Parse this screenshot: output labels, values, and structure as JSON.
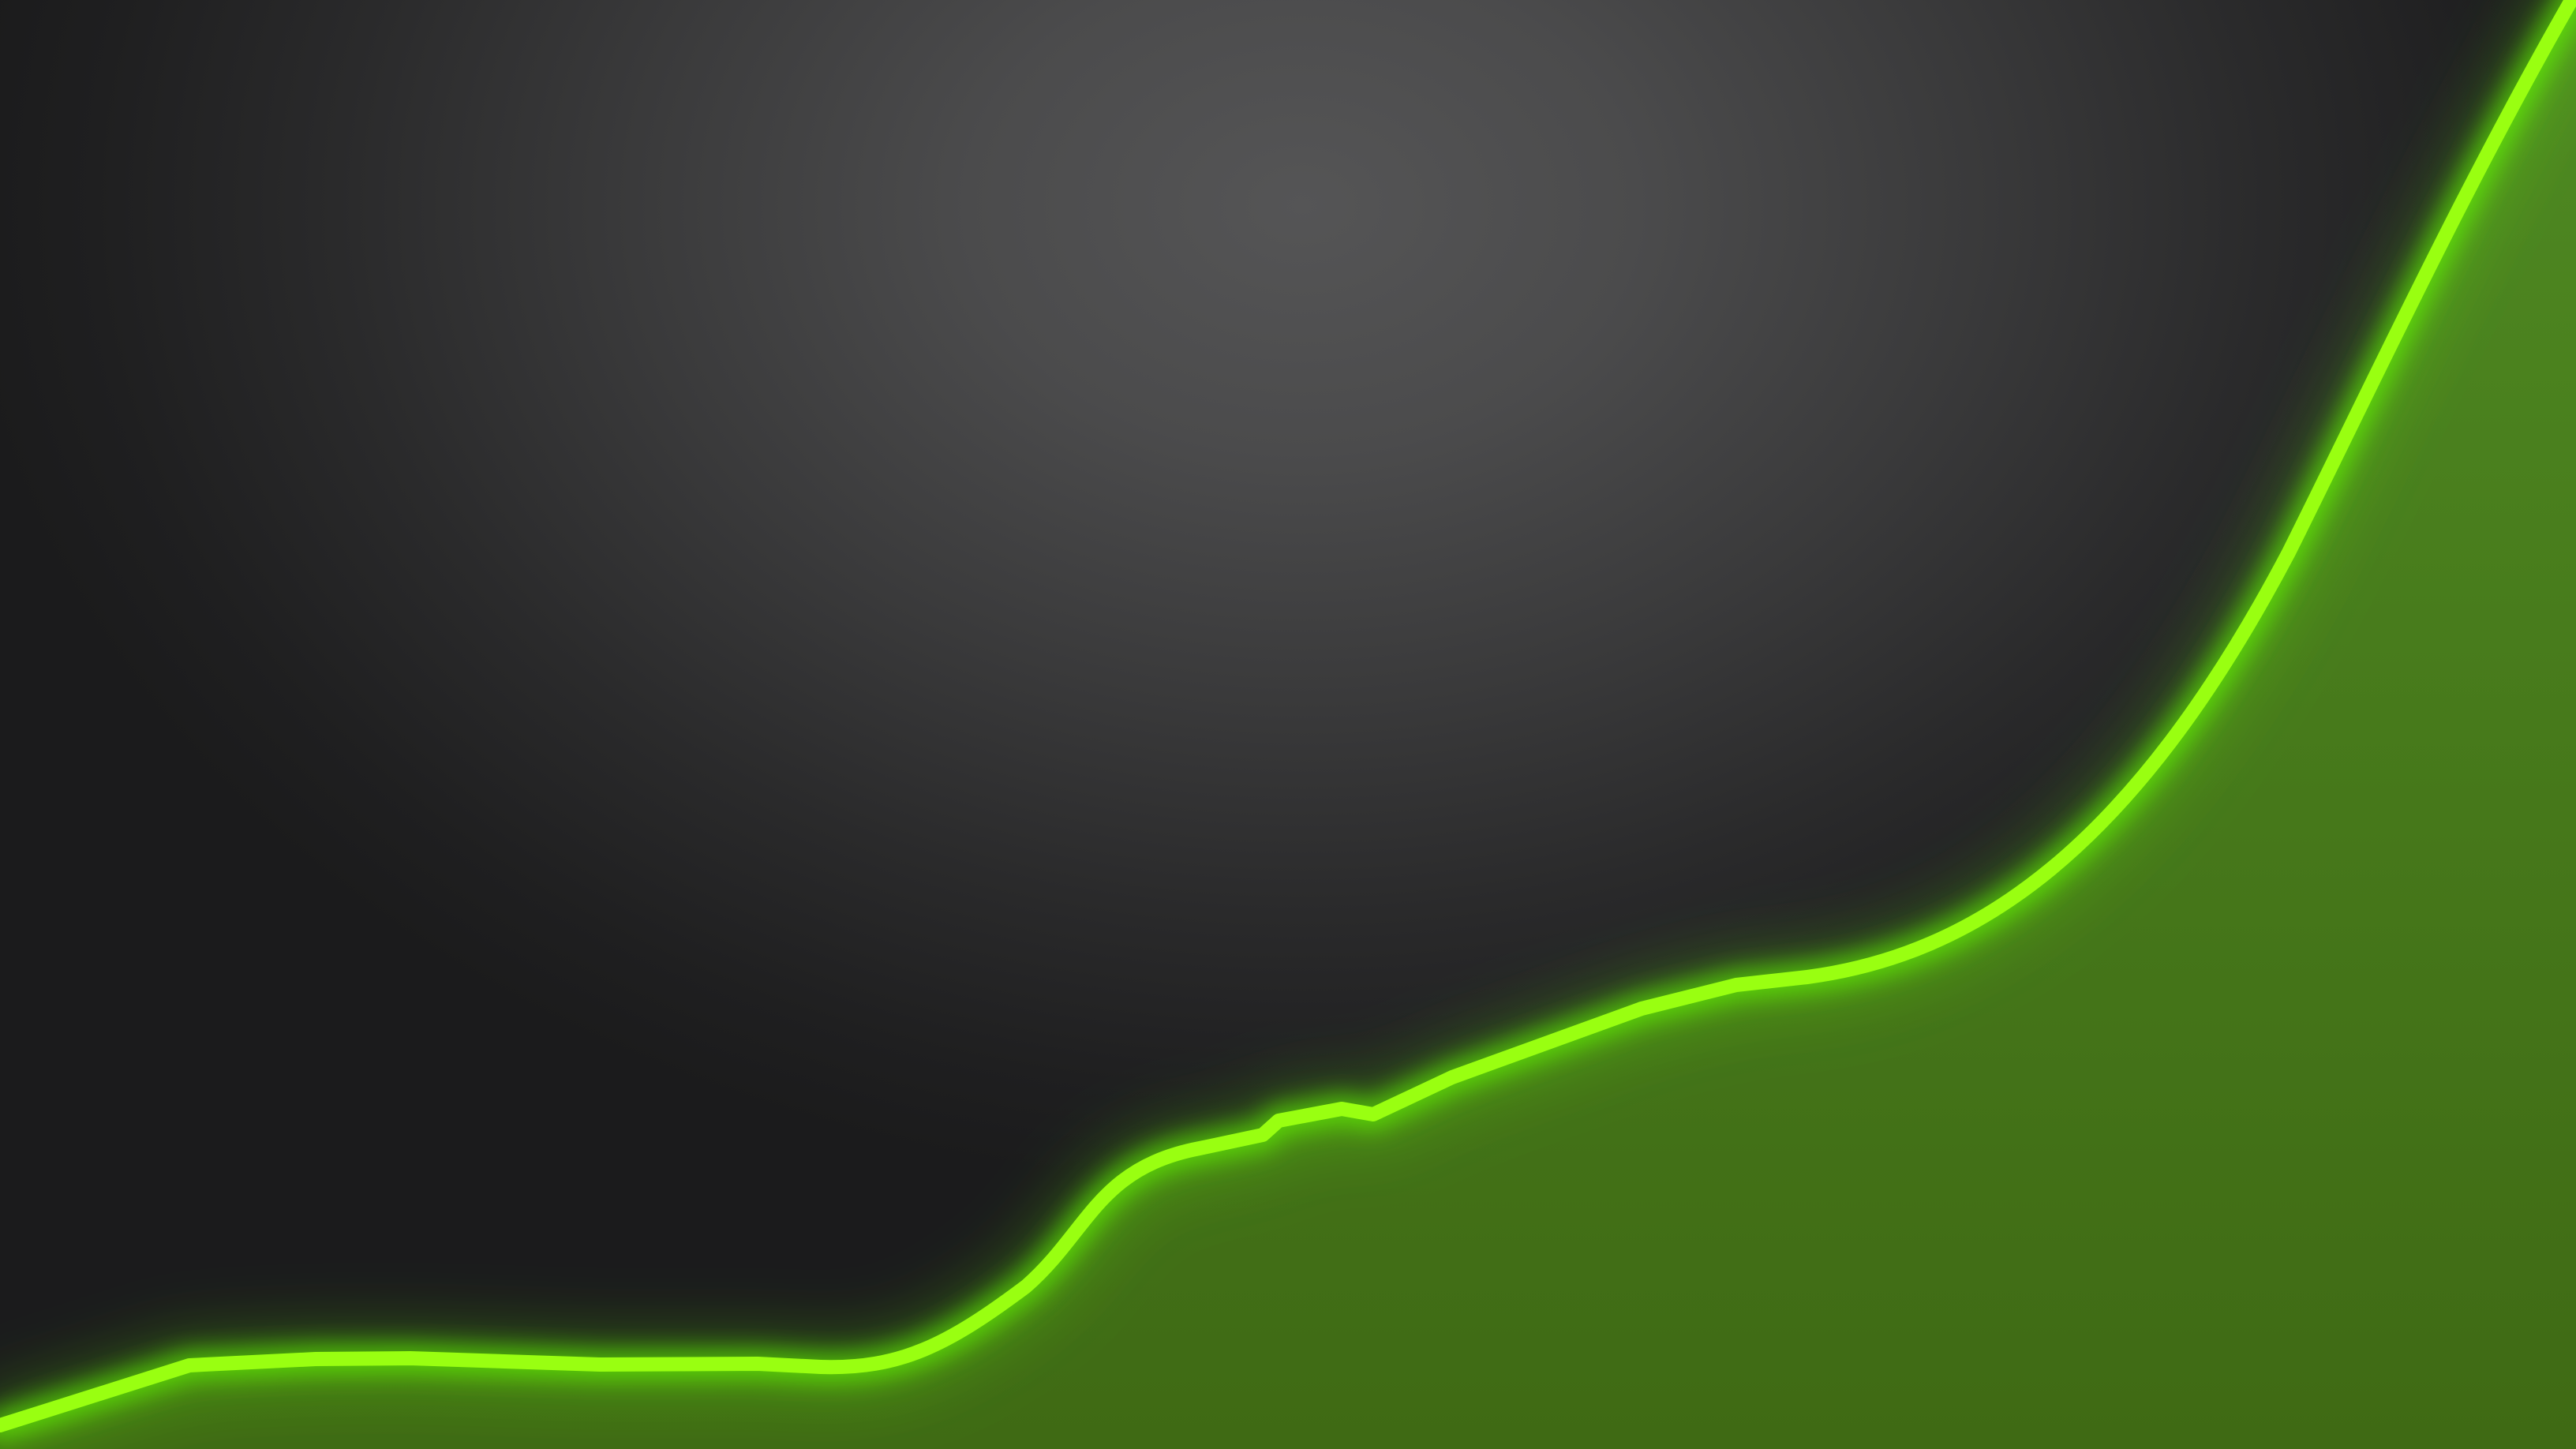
{
  "wallpaper": {
    "background_color": "#1c1c1d",
    "background_highlight_color": "#555556",
    "line_color": "#99ff11",
    "glow_color": "#66ff00",
    "fill_color_top": "#4f8a22",
    "fill_color_bottom": "#3f6a14"
  }
}
